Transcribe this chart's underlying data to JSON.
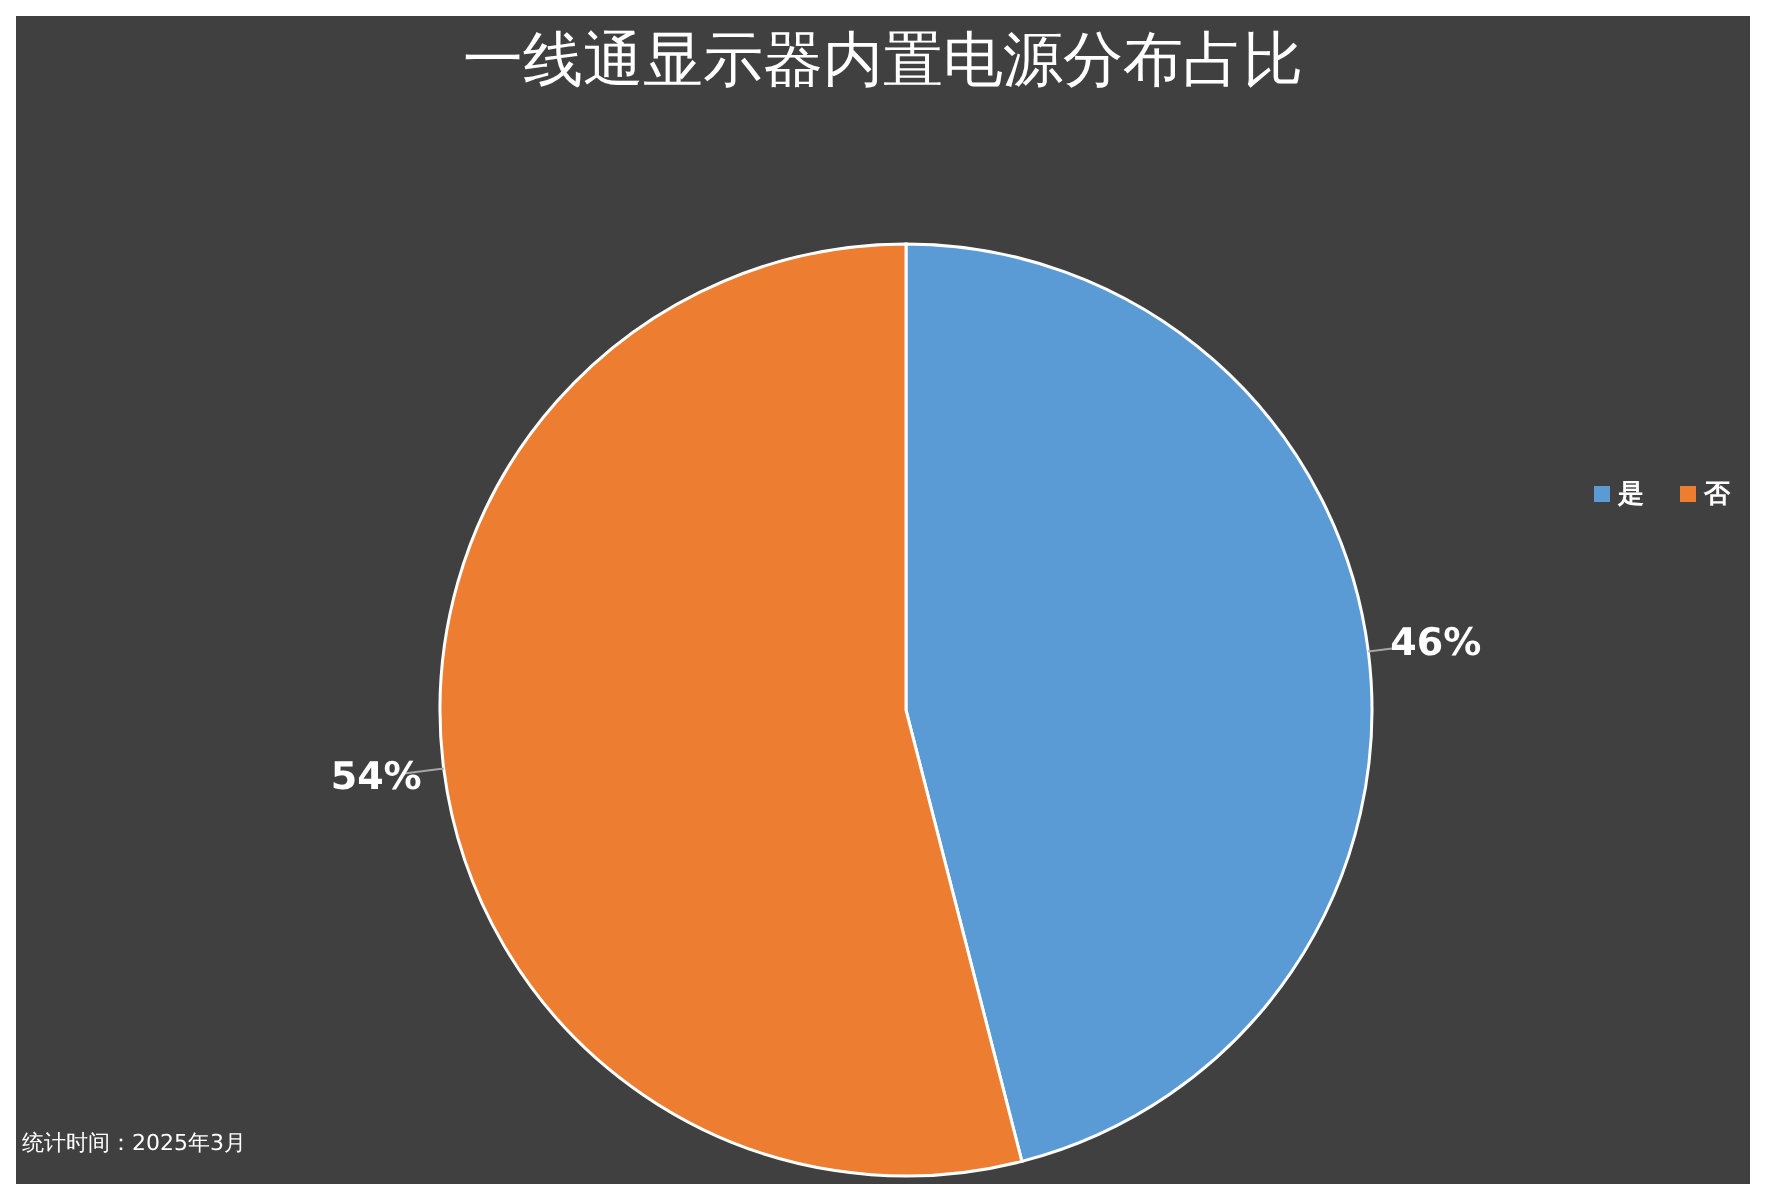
{
  "chart_data": {
    "type": "pie",
    "title": "一线通显示器内置电源分布占比",
    "categories": [
      "是",
      "否"
    ],
    "values": [
      46,
      54
    ],
    "colors": [
      "#5b9bd5",
      "#ed7d31"
    ],
    "value_labels": [
      "46%",
      "54%"
    ],
    "legend": "right",
    "annotations": [
      "统计时间：2025年3月"
    ]
  }
}
